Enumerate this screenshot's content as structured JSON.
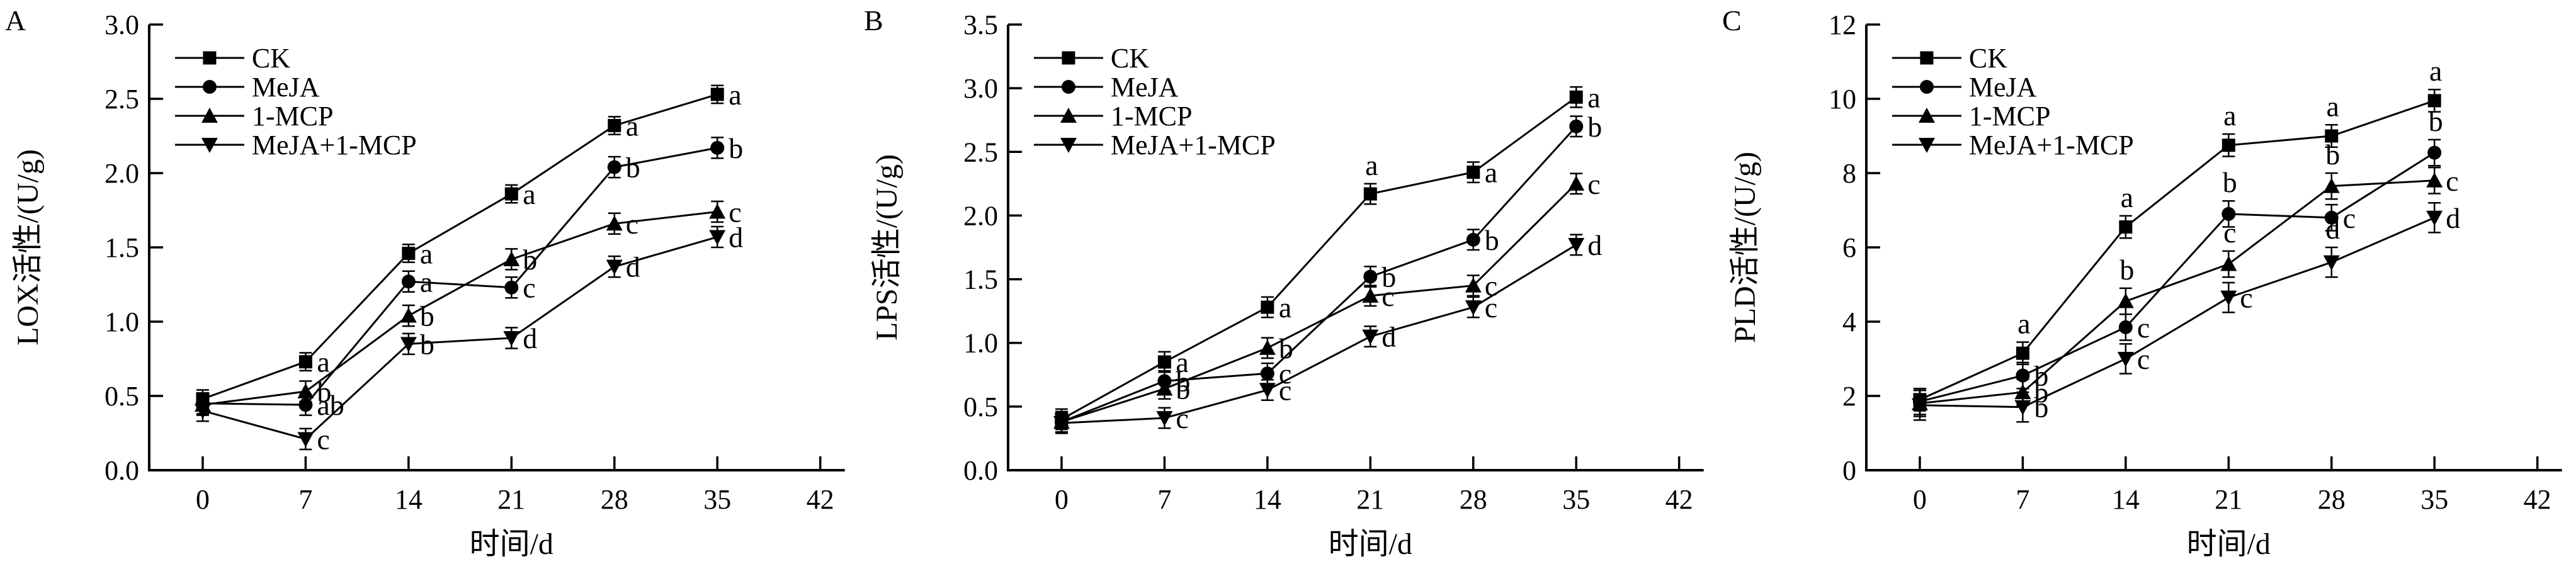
{
  "page": {
    "background": "#ffffff",
    "ink": "#000000"
  },
  "figure": {
    "panel_letters": [
      "A",
      "B",
      "C"
    ],
    "x_axis_title": "时间/d",
    "legend_entries": [
      "CK",
      "MeJA",
      "1-MCP",
      "MeJA+1-MCP"
    ]
  },
  "chart_data": [
    {
      "type": "line",
      "panel_label": "A",
      "title": "",
      "xlabel": "时间/d",
      "ylabel": "LOX活性/(U/g)",
      "x": [
        0,
        7,
        14,
        21,
        28,
        35
      ],
      "xticks": [
        0,
        7,
        14,
        21,
        28,
        35,
        42
      ],
      "xlim": [
        0,
        42
      ],
      "ylim": [
        0,
        3.0
      ],
      "ytick_step": 0.5,
      "ytick_decimals": 1,
      "grid": false,
      "error_bars": true,
      "legend_position": "top-left-inside",
      "series": [
        {
          "name": "CK",
          "marker": "square",
          "values": [
            0.48,
            0.73,
            1.46,
            1.86,
            2.32,
            2.53
          ],
          "err": 0.06,
          "sig_letters": [
            "",
            "a",
            "a",
            "a",
            "a",
            "a"
          ],
          "sig_pos": [
            "",
            "right",
            "right",
            "right",
            "right",
            "right"
          ]
        },
        {
          "name": "MeJA",
          "marker": "circle",
          "values": [
            0.45,
            0.44,
            1.27,
            1.23,
            2.04,
            2.17
          ],
          "err": 0.07,
          "sig_letters": [
            "",
            "ab",
            "a",
            "c",
            "b",
            "b"
          ],
          "sig_pos": [
            "",
            "right",
            "right",
            "right",
            "right",
            "right"
          ]
        },
        {
          "name": "1-MCP",
          "marker": "triangle-up",
          "values": [
            0.44,
            0.53,
            1.04,
            1.42,
            1.66,
            1.74
          ],
          "err": 0.07,
          "sig_letters": [
            "",
            "b",
            "b",
            "b",
            "c",
            "c"
          ],
          "sig_pos": [
            "",
            "right",
            "right",
            "right",
            "right",
            "right"
          ]
        },
        {
          "name": "MeJA+1-MCP",
          "marker": "triangle-down",
          "values": [
            0.4,
            0.21,
            0.85,
            0.89,
            1.37,
            1.57
          ],
          "err": 0.07,
          "sig_letters": [
            "",
            "c",
            "b",
            "d",
            "d",
            "d"
          ],
          "sig_pos": [
            "",
            "right",
            "right",
            "right",
            "right",
            "right"
          ]
        }
      ]
    },
    {
      "type": "line",
      "panel_label": "B",
      "title": "",
      "xlabel": "时间/d",
      "ylabel": "LPS活性/(U/g)",
      "x": [
        0,
        7,
        14,
        21,
        28,
        35
      ],
      "xticks": [
        0,
        7,
        14,
        21,
        28,
        35,
        42
      ],
      "xlim": [
        0,
        42
      ],
      "ylim": [
        0,
        3.5
      ],
      "ytick_step": 0.5,
      "ytick_decimals": 1,
      "grid": false,
      "error_bars": true,
      "legend_position": "top-left-inside",
      "series": [
        {
          "name": "CK",
          "marker": "square",
          "values": [
            0.4,
            0.85,
            1.28,
            2.17,
            2.34,
            2.93
          ],
          "err": 0.08,
          "sig_letters": [
            "",
            "a",
            "a",
            "a",
            "a",
            "a"
          ],
          "sig_pos": [
            "",
            "right",
            "right",
            "above",
            "right",
            "right"
          ]
        },
        {
          "name": "MeJA",
          "marker": "circle",
          "values": [
            0.38,
            0.7,
            0.76,
            1.52,
            1.81,
            2.7
          ],
          "err": 0.08,
          "sig_letters": [
            "",
            "b",
            "c",
            "b",
            "b",
            "b"
          ],
          "sig_pos": [
            "",
            "right",
            "right",
            "right",
            "right",
            "right"
          ]
        },
        {
          "name": "1-MCP",
          "marker": "triangle-up",
          "values": [
            0.38,
            0.64,
            0.96,
            1.37,
            1.45,
            2.25
          ],
          "err": 0.08,
          "sig_letters": [
            "",
            "b",
            "b",
            "c",
            "c",
            "c"
          ],
          "sig_pos": [
            "",
            "right",
            "right",
            "right",
            "right",
            "right"
          ]
        },
        {
          "name": "MeJA+1-MCP",
          "marker": "triangle-down",
          "values": [
            0.37,
            0.41,
            0.63,
            1.05,
            1.28,
            1.77
          ],
          "err": 0.08,
          "sig_letters": [
            "",
            "c",
            "c",
            "d",
            "c",
            "d"
          ],
          "sig_pos": [
            "",
            "right",
            "right",
            "right",
            "right",
            "right"
          ]
        }
      ]
    },
    {
      "type": "line",
      "panel_label": "C",
      "title": "",
      "xlabel": "时间/d",
      "ylabel": "PLD活性/(U/g)",
      "x": [
        0,
        7,
        14,
        21,
        28,
        35
      ],
      "xticks": [
        0,
        7,
        14,
        21,
        28,
        35,
        42
      ],
      "xlim": [
        0,
        42
      ],
      "ylim": [
        0,
        12
      ],
      "ytick_step": 2,
      "ytick_decimals": 0,
      "grid": false,
      "error_bars": true,
      "legend_position": "top-left-inside",
      "series": [
        {
          "name": "CK",
          "marker": "square",
          "values": [
            1.9,
            3.15,
            6.55,
            8.75,
            9.0,
            9.95
          ],
          "err": 0.3,
          "sig_letters": [
            "",
            "a",
            "a",
            "a",
            "a",
            "a"
          ],
          "sig_pos": [
            "",
            "above",
            "above",
            "above",
            "above",
            "above"
          ]
        },
        {
          "name": "MeJA",
          "marker": "circle",
          "values": [
            1.85,
            2.55,
            3.85,
            6.9,
            6.8,
            8.55
          ],
          "err": 0.35,
          "sig_letters": [
            "",
            "b",
            "c",
            "b",
            "c",
            "b"
          ],
          "sig_pos": [
            "",
            "right",
            "right",
            "above",
            "right",
            "above"
          ]
        },
        {
          "name": "1-MCP",
          "marker": "triangle-up",
          "values": [
            1.8,
            2.1,
            4.55,
            5.55,
            7.65,
            7.8
          ],
          "err": 0.35,
          "sig_letters": [
            "",
            "b",
            "b",
            "c",
            "b",
            "c"
          ],
          "sig_pos": [
            "",
            "right",
            "above",
            "above",
            "above",
            "right"
          ]
        },
        {
          "name": "MeJA+1-MCP",
          "marker": "triangle-down",
          "values": [
            1.75,
            1.7,
            3.0,
            4.65,
            5.6,
            6.8
          ],
          "err": 0.4,
          "sig_letters": [
            "",
            "b",
            "c",
            "c",
            "d",
            "d"
          ],
          "sig_pos": [
            "",
            "right",
            "right",
            "right",
            "above",
            "right"
          ]
        }
      ]
    }
  ]
}
